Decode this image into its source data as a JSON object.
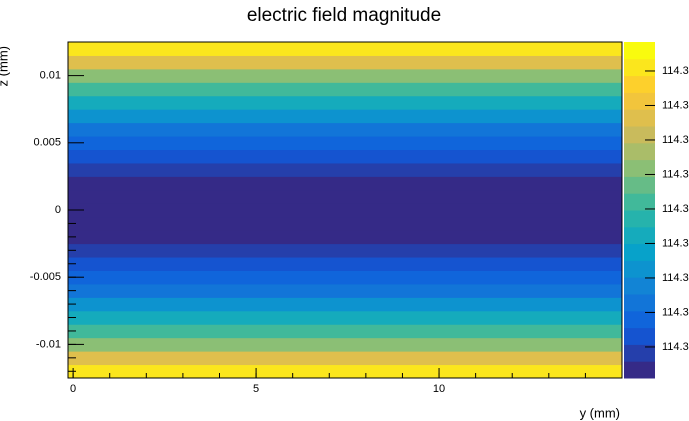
{
  "chart_data": {
    "type": "heatmap",
    "title": "electric field magnitude",
    "x_label": "y (mm)",
    "y_label": "z (mm)",
    "xlim": [
      -0.14,
      15
    ],
    "xticks": [
      0,
      5,
      10
    ],
    "ylim": [
      -0.0125,
      0.0125
    ],
    "yticks": [
      -0.01,
      -0.005,
      0,
      0.005,
      0.01
    ],
    "ybins": [
      -0.0125,
      -0.0115,
      -0.0105,
      -0.0095,
      -0.0085,
      -0.0075,
      -0.0065,
      -0.0055,
      -0.0045,
      -0.0035,
      -0.0025,
      -0.0015,
      -0.0005,
      0.0005,
      0.0015,
      0.0025,
      0.0035,
      0.0045,
      0.0055,
      0.0065,
      0.0075,
      0.0085,
      0.0095,
      0.0105,
      0.0115,
      0.0125
    ],
    "values": [
      114.30408,
      114.30264,
      114.30133,
      114.30015,
      114.29909,
      114.29815,
      114.29734,
      114.29666,
      114.2961,
      114.29566,
      114.29535,
      114.29516,
      114.2951,
      114.29516,
      114.29535,
      114.29566,
      114.2961,
      114.29666,
      114.29734,
      114.29815,
      114.29909,
      114.30015,
      114.30133,
      114.30264,
      114.30408
    ],
    "zlim": [
      114.2951,
      114.30484
    ],
    "zticks": [
      {
        "value": 114.296,
        "label": "114.3"
      },
      {
        "value": 114.297,
        "label": "114.3"
      },
      {
        "value": 114.298,
        "label": "114.3"
      },
      {
        "value": 114.299,
        "label": "114.3"
      },
      {
        "value": 114.3,
        "label": "114.3"
      },
      {
        "value": 114.301,
        "label": "114.3"
      },
      {
        "value": 114.302,
        "label": "114.3"
      },
      {
        "value": 114.303,
        "label": "114.3"
      },
      {
        "value": 114.304,
        "label": "114.3"
      }
    ],
    "levels": 20,
    "palette": "kBird"
  }
}
